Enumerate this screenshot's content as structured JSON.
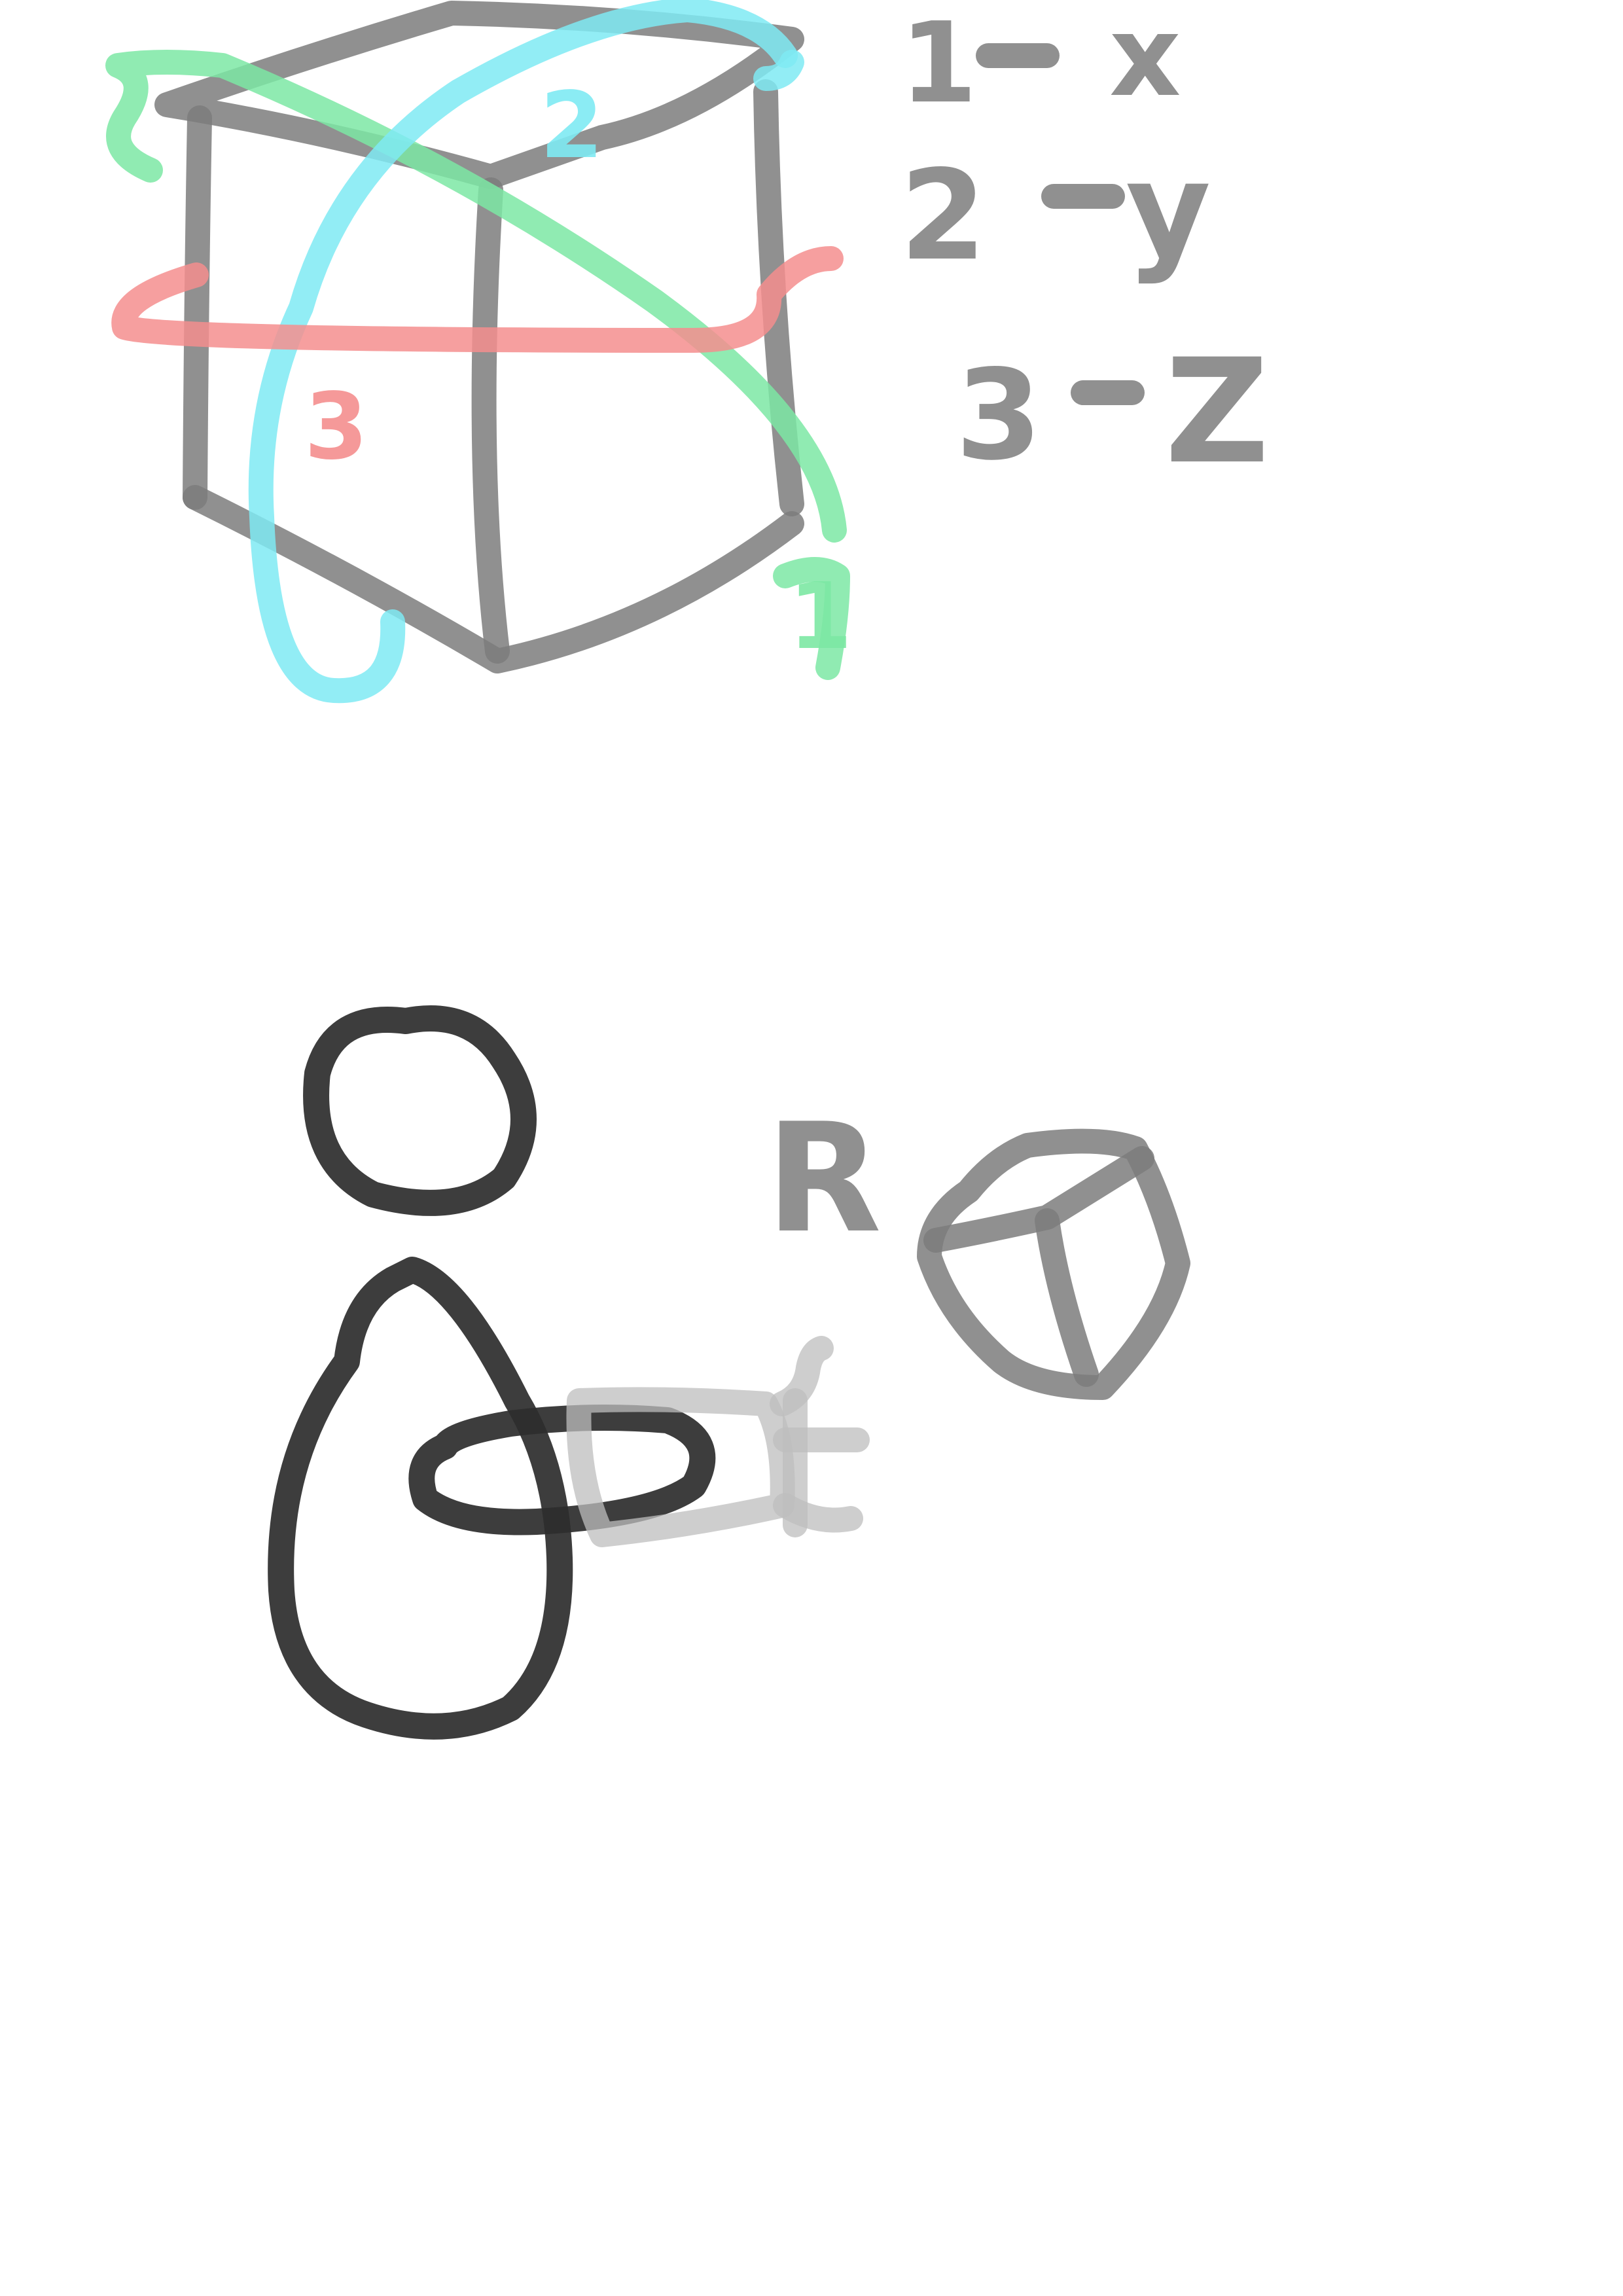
{
  "legend": [
    {
      "number": "1",
      "axis": "x"
    },
    {
      "number": "2",
      "axis": "y"
    },
    {
      "number": "3",
      "axis": "Z"
    }
  ],
  "axis_labels": {
    "green_arrow": "1",
    "cyan_arrow": "2",
    "red_arrow": "3"
  },
  "rotate_label": "R",
  "colors": {
    "x_axis": "#7de8a4",
    "y_axis": "#7feaf3",
    "z_axis": "#f58e8e",
    "pencil": "#7d7d7d",
    "figure": "#2d2d2d"
  }
}
